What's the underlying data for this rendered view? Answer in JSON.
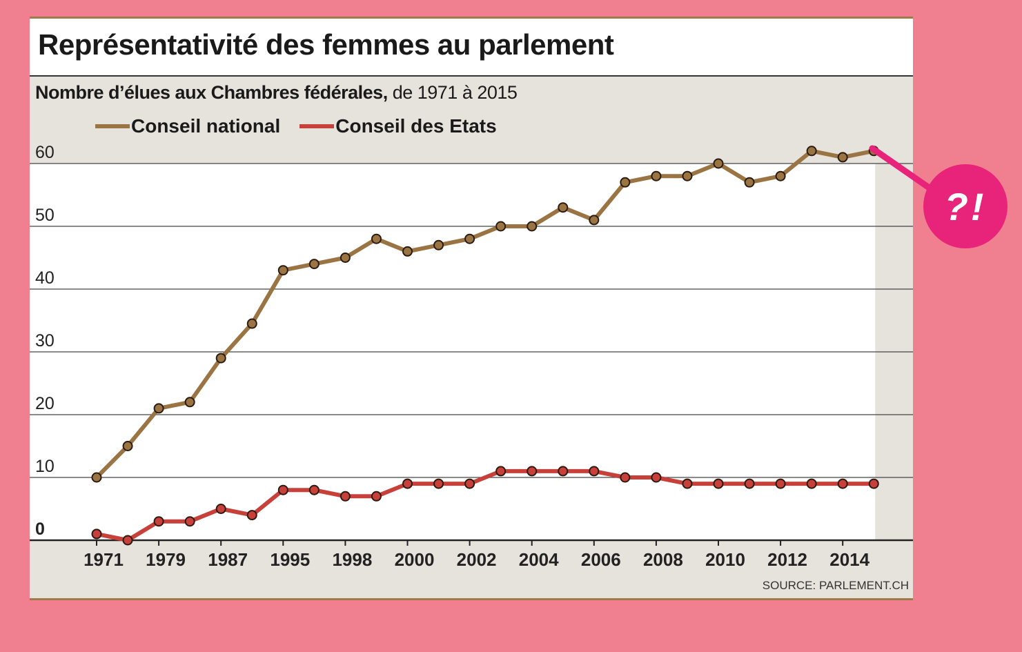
{
  "badge": {
    "text": "?!"
  },
  "chart_data": {
    "type": "line",
    "title": "Représentativité des femmes au parlement",
    "subtitle_bold": "Nombre d’élues aux Chambres fédérales,",
    "subtitle_rest": " de 1971 à 2015",
    "source": "SOURCE: PARLEMENT.CH",
    "ylim": [
      0,
      60
    ],
    "yticks": [
      0,
      10,
      20,
      30,
      40,
      50,
      60
    ],
    "xtick_labels": [
      "1971",
      "1979",
      "1987",
      "1995",
      "1998",
      "2000",
      "2002",
      "2004",
      "2006",
      "2008",
      "2010",
      "2012",
      "2014"
    ],
    "xlabel": "",
    "ylabel": "",
    "series": [
      {
        "name": "Conseil national",
        "color": "#9a7442",
        "values": [
          10,
          15,
          21,
          22,
          29,
          34.5,
          43,
          44,
          45,
          48,
          46,
          47,
          48,
          50,
          50,
          53,
          51,
          57,
          58,
          58,
          60,
          57,
          58,
          62,
          61,
          62
        ]
      },
      {
        "name": "Conseil des Etats",
        "color": "#c8403a",
        "values": [
          1,
          0,
          3,
          3,
          5,
          4,
          8,
          8,
          7,
          7,
          9,
          9,
          9,
          11,
          11,
          11,
          11,
          10,
          10,
          9,
          9,
          9,
          9,
          9,
          9,
          9
        ]
      }
    ],
    "colors": {
      "accent": "#e8247a",
      "background": "#f08090",
      "panel": "#e6e2dc"
    }
  }
}
